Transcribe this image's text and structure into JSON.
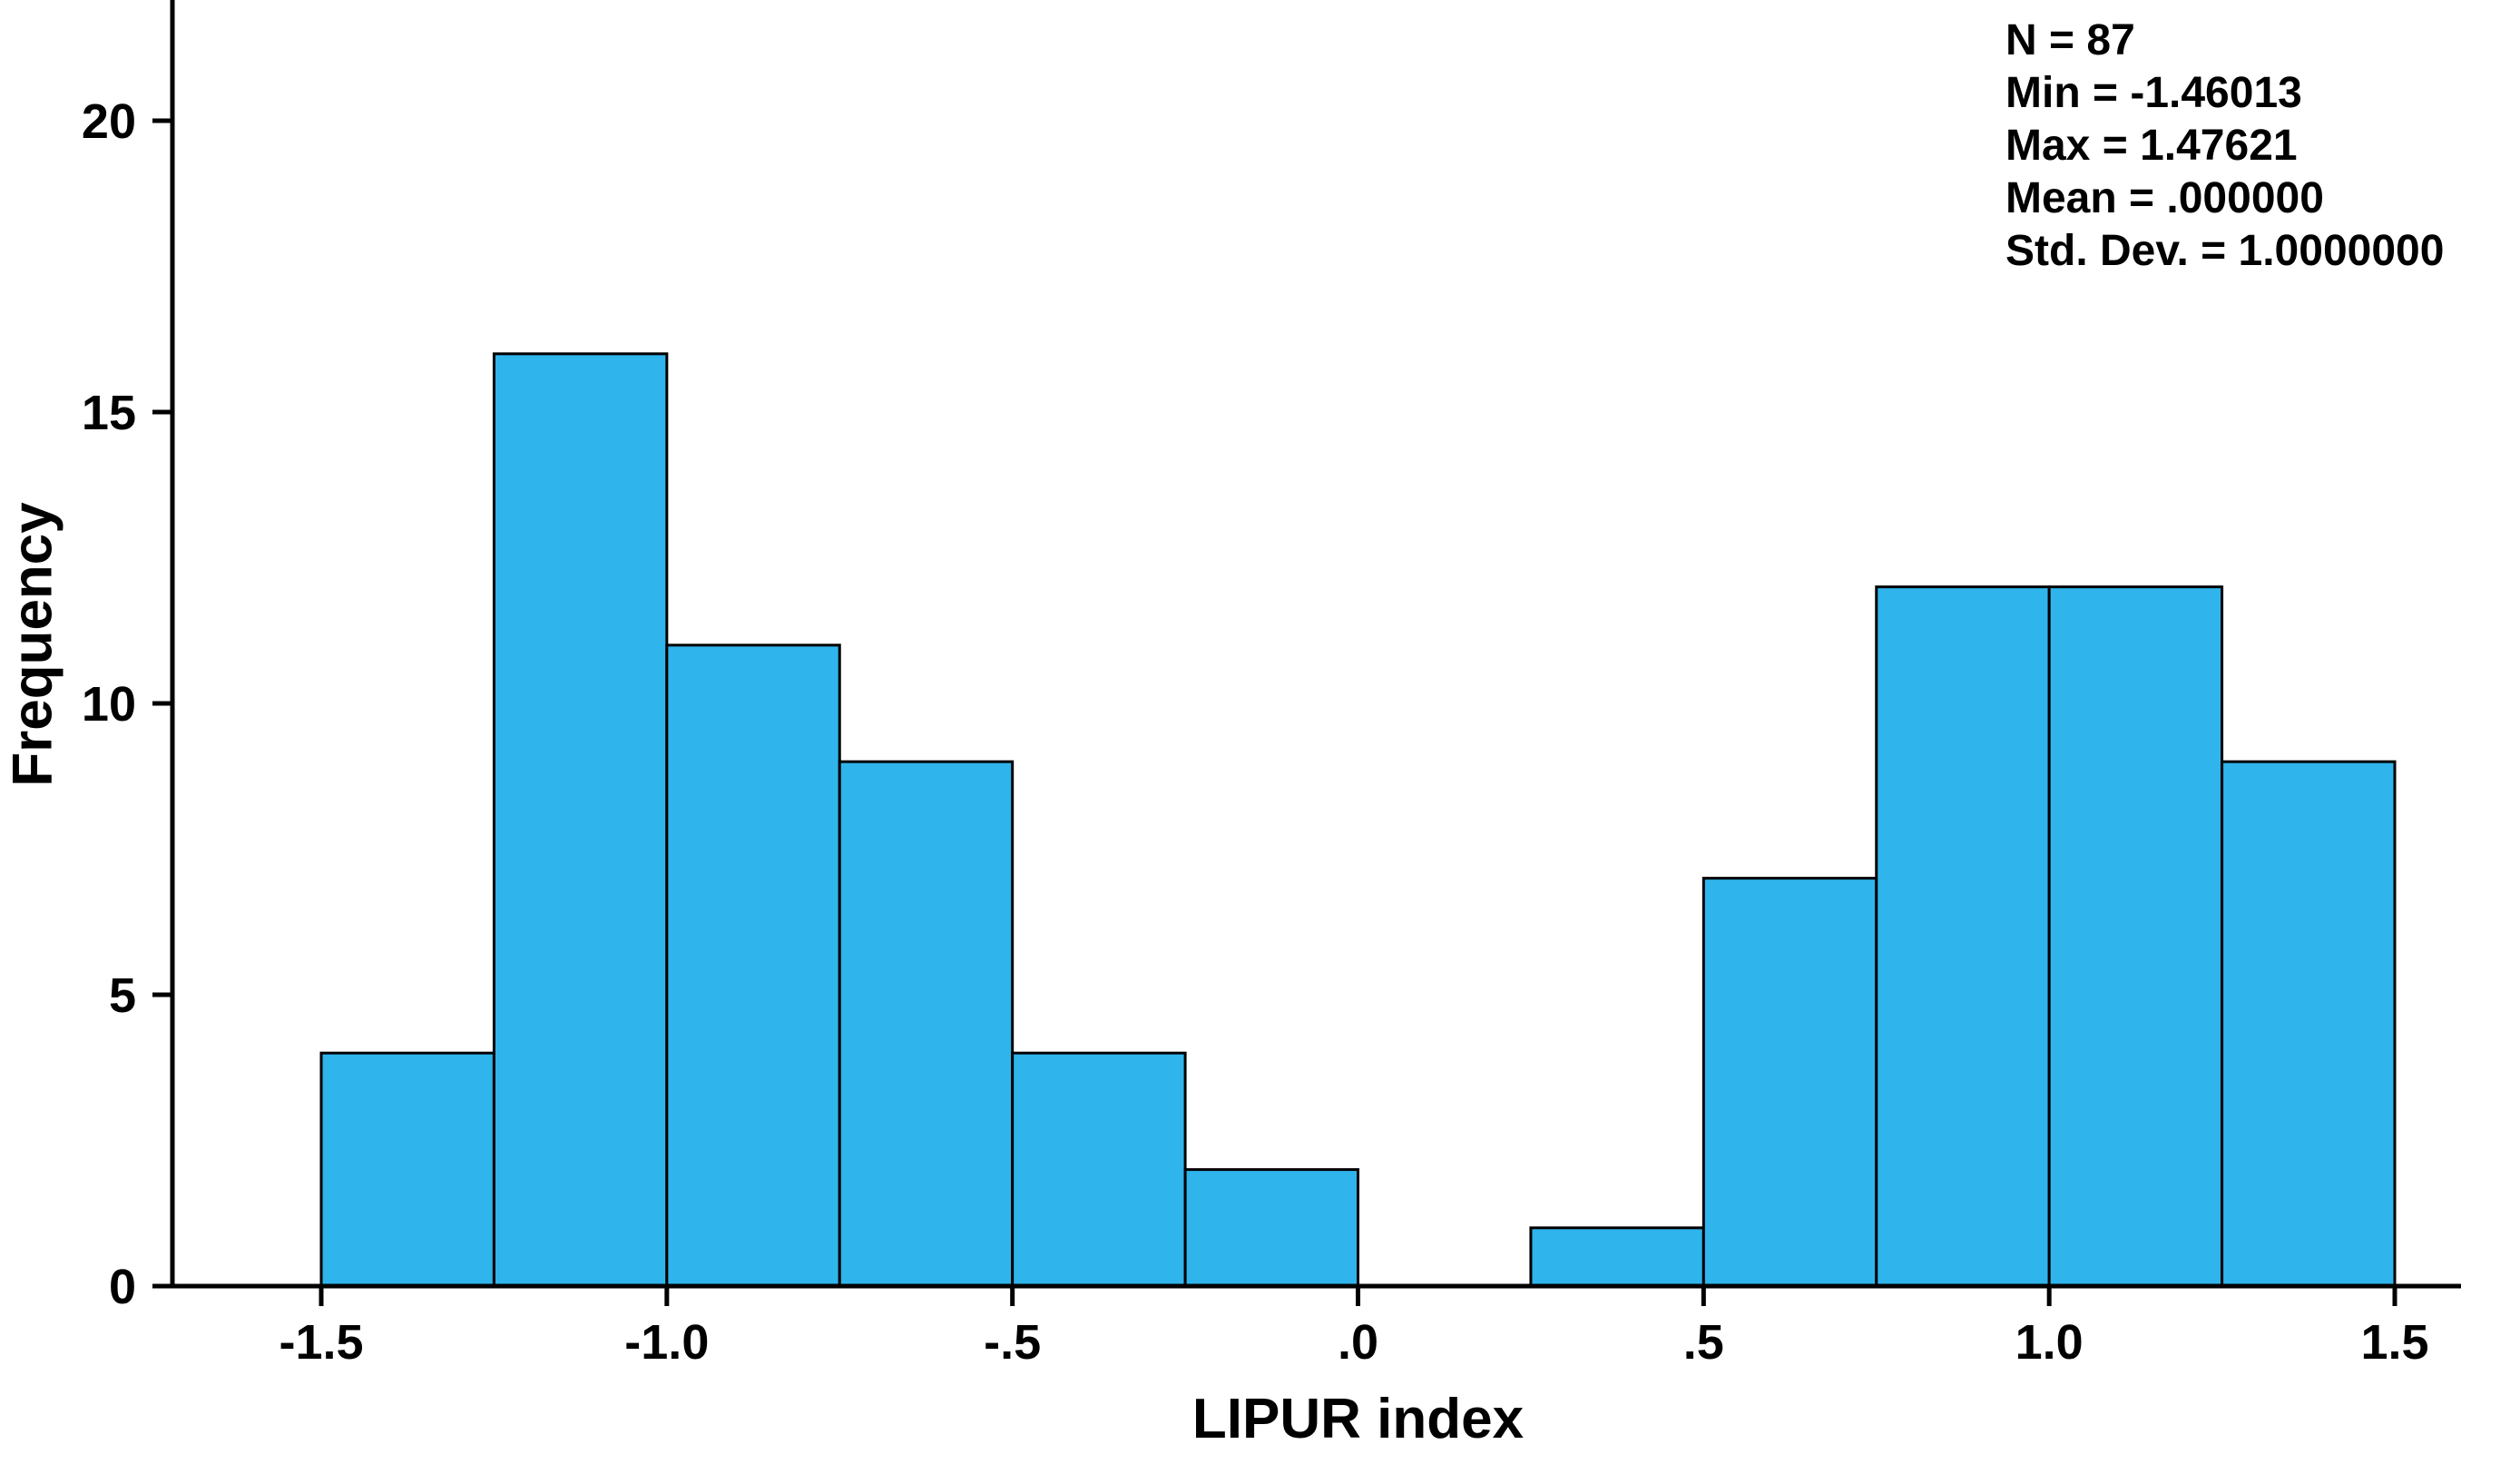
{
  "chart_data": {
    "type": "bar",
    "subtype": "histogram",
    "title": "",
    "xlabel": "LIPUR index",
    "ylabel": "Frequency",
    "xlim": [
      -1.5,
      1.5
    ],
    "ylim": [
      0,
      20
    ],
    "grid": false,
    "legend": false,
    "bar_color": "#2FB4EC",
    "bar_border_color": "#000000",
    "bin_edges": [
      -1.5,
      -1.25,
      -1.0,
      -0.75,
      -0.5,
      -0.25,
      0.0,
      0.25,
      0.5,
      0.75,
      1.0,
      1.25,
      1.5
    ],
    "counts": [
      4,
      16,
      11,
      9,
      4,
      2,
      0,
      1,
      7,
      12,
      12,
      9
    ],
    "x_ticks": [
      {
        "value": -1.5,
        "label": "-1.5"
      },
      {
        "value": -1.0,
        "label": "-1.0"
      },
      {
        "value": -0.5,
        "label": "-.5"
      },
      {
        "value": 0.0,
        "label": ".0"
      },
      {
        "value": 0.5,
        "label": ".5"
      },
      {
        "value": 1.0,
        "label": "1.0"
      },
      {
        "value": 1.5,
        "label": "1.5"
      }
    ],
    "y_ticks": [
      {
        "value": 0,
        "label": "0"
      },
      {
        "value": 5,
        "label": "5"
      },
      {
        "value": 10,
        "label": "10"
      },
      {
        "value": 15,
        "label": "15"
      },
      {
        "value": 20,
        "label": "20"
      }
    ],
    "annotation": {
      "lines": [
        "N = 87",
        "Min = -1.46013",
        "Max = 1.47621",
        "Mean = .000000",
        "Std. Dev. = 1.0000000"
      ]
    }
  }
}
